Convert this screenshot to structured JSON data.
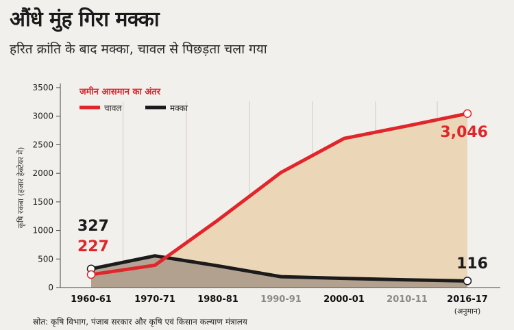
{
  "title": "औंधे मुंह गिरा मक्का",
  "subtitle": "हरित क्रांति के बाद मक्का, चावल से पिछड़ता चला गया",
  "source": "स्रोत: कृषि विभाग, पंजाब सरकार और कृषि एवं किसान कल्याण मंत्रालय",
  "colors": {
    "rice": "#e0262b",
    "maize": "#1b1b1b",
    "rice_area": "#ecd6b8",
    "maize_area": "#a89887",
    "legend_title": "#e0262b"
  },
  "chart_data": {
    "type": "area",
    "ylabel": "कृषि रकबा (हजार हेक्टेयर में)",
    "ylim": [
      0,
      3500
    ],
    "yticks": [
      0,
      500,
      1000,
      1500,
      2000,
      2500,
      3000,
      3500
    ],
    "categories": [
      "1960-61",
      "1970-71",
      "1980-81",
      "1990-91",
      "2000-01",
      "2010-11",
      "2016-17"
    ],
    "category_note": "(अनुमान)",
    "legend_title": "जमीन आसमान का अंतर",
    "legend_placement": "top-left",
    "series": [
      {
        "name": "चावल",
        "values": [
          227,
          390,
          1180,
          2015,
          2610,
          2830,
          3046
        ]
      },
      {
        "name": "मक्का",
        "values": [
          327,
          555,
          380,
          190,
          160,
          135,
          116
        ]
      }
    ],
    "annotations": [
      {
        "text": "327",
        "series": "मक्का",
        "index": 0
      },
      {
        "text": "227",
        "series": "चावल",
        "index": 0
      },
      {
        "text": "3,046",
        "series": "चावल",
        "index": 6
      },
      {
        "text": "116",
        "series": "मक्का",
        "index": 6
      }
    ]
  }
}
